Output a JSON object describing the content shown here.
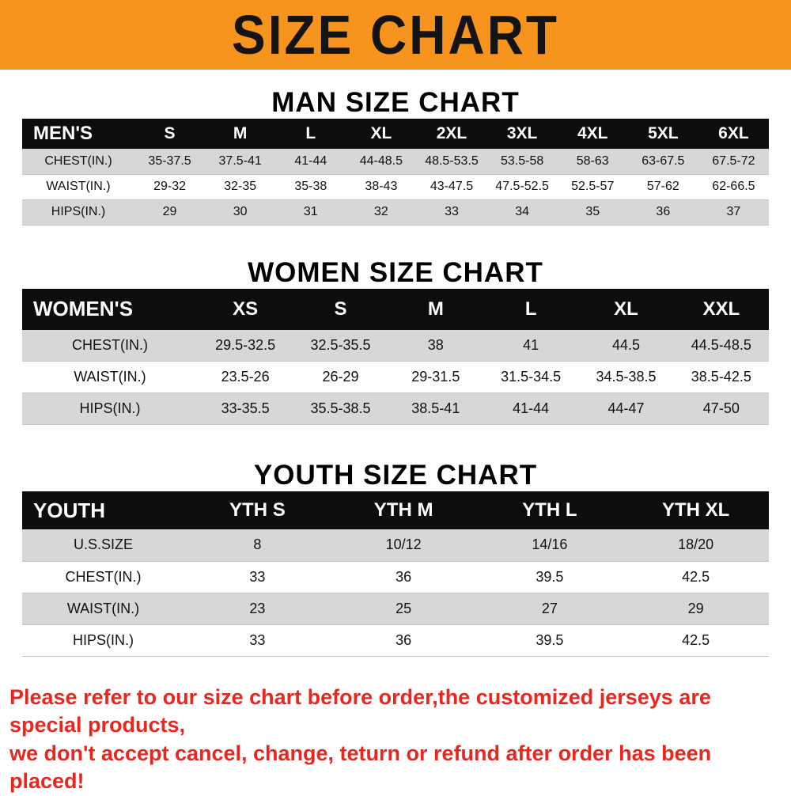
{
  "banner": {
    "title": "SIZE CHART",
    "bg_color": "#f7941e",
    "text_color": "#141414"
  },
  "colors": {
    "header_black": "#0d0d0d",
    "row_gray": "#d7d7d7",
    "row_white": "#ffffff",
    "footer_red": "#e8271f"
  },
  "sections": [
    {
      "heading": "MAN SIZE CHART",
      "table": {
        "header_label": "MEN'S",
        "columns": [
          "S",
          "M",
          "L",
          "XL",
          "2XL",
          "3XL",
          "4XL",
          "5XL",
          "6XL"
        ],
        "rows": [
          {
            "label": "CHEST(IN.)",
            "values": [
              "35-37.5",
              "37.5-41",
              "41-44",
              "44-48.5",
              "48.5-53.5",
              "53.5-58",
              "58-63",
              "63-67.5",
              "67.5-72"
            ]
          },
          {
            "label": "WAIST(IN.)",
            "values": [
              "29-32",
              "32-35",
              "35-38",
              "38-43",
              "43-47.5",
              "47.5-52.5",
              "52.5-57",
              "57-62",
              "62-66.5"
            ]
          },
          {
            "label": "HIPS(IN.)",
            "values": [
              "29",
              "30",
              "31",
              "32",
              "33",
              "34",
              "35",
              "36",
              "37"
            ]
          }
        ]
      }
    },
    {
      "heading": "WOMEN SIZE CHART",
      "table": {
        "header_label": "WOMEN'S",
        "columns": [
          "XS",
          "S",
          "M",
          "L",
          "XL",
          "XXL"
        ],
        "rows": [
          {
            "label": "CHEST(IN.)",
            "values": [
              "29.5-32.5",
              "32.5-35.5",
              "38",
              "41",
              "44.5",
              "44.5-48.5"
            ]
          },
          {
            "label": "WAIST(IN.)",
            "values": [
              "23.5-26",
              "26-29",
              "29-31.5",
              "31.5-34.5",
              "34.5-38.5",
              "38.5-42.5"
            ]
          },
          {
            "label": "HIPS(IN.)",
            "values": [
              "33-35.5",
              "35.5-38.5",
              "38.5-41",
              "41-44",
              "44-47",
              "47-50"
            ]
          }
        ]
      }
    },
    {
      "heading": "YOUTH SIZE CHART",
      "table": {
        "header_label": "YOUTH",
        "columns": [
          "YTH S",
          "YTH M",
          "YTH L",
          "YTH XL"
        ],
        "rows": [
          {
            "label": "U.S.SIZE",
            "values": [
              "8",
              "10/12",
              "14/16",
              "18/20"
            ]
          },
          {
            "label": "CHEST(IN.)",
            "values": [
              "33",
              "36",
              "39.5",
              "42.5"
            ]
          },
          {
            "label": "WAIST(IN.)",
            "values": [
              "23",
              "25",
              "27",
              "29"
            ]
          },
          {
            "label": "HIPS(IN.)",
            "values": [
              "33",
              "36",
              "39.5",
              "42.5"
            ]
          }
        ]
      }
    }
  ],
  "footer": {
    "line1": "Please refer to our size chart before order,the customized jerseys are special products,",
    "line2": "we don't accept cancel, change, teturn or refund after order has been placed!"
  }
}
